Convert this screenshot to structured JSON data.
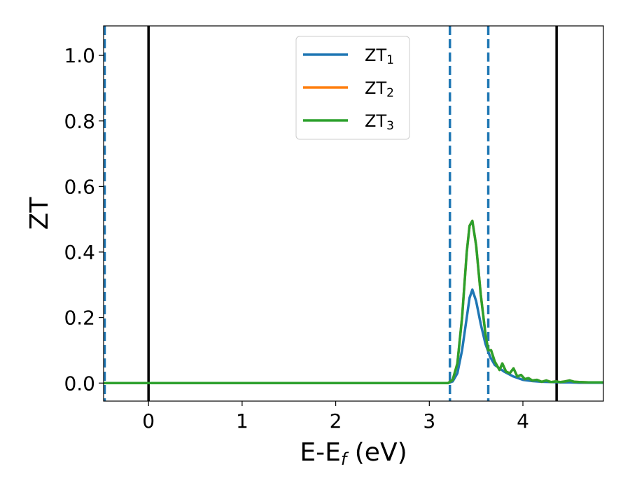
{
  "chart_data": {
    "type": "line",
    "xlabel_main": "E-E",
    "xlabel_sub": "f",
    "xlabel_unit": " (eV)",
    "ylabel": "ZT",
    "xlim": [
      -0.48,
      4.86
    ],
    "ylim": [
      -0.055,
      1.09
    ],
    "xticks": [
      0,
      1,
      2,
      3,
      4
    ],
    "xtick_labels": [
      "0",
      "1",
      "2",
      "3",
      "4"
    ],
    "yticks": [
      0.0,
      0.2,
      0.4,
      0.6,
      0.8,
      1.0
    ],
    "ytick_labels": [
      "0.0",
      "0.2",
      "0.4",
      "0.6",
      "0.8",
      "1.0"
    ],
    "grid": false,
    "legend_position": "top-center",
    "vlines": [
      {
        "x": -0.48,
        "style": "dashed",
        "color": "#1f77b4"
      },
      {
        "x": 0.0,
        "style": "solid",
        "color": "#000000"
      },
      {
        "x": 3.22,
        "style": "dashed",
        "color": "#1f77b4"
      },
      {
        "x": 3.63,
        "style": "dashed",
        "color": "#1f77b4"
      },
      {
        "x": 4.36,
        "style": "solid",
        "color": "#000000"
      }
    ],
    "series": [
      {
        "name": "ZT",
        "subscript": "1",
        "color": "#1f77b4",
        "x": [
          -0.48,
          3.2,
          3.25,
          3.3,
          3.35,
          3.4,
          3.43,
          3.46,
          3.5,
          3.55,
          3.6,
          3.65,
          3.7,
          3.8,
          3.9,
          4.0,
          4.1,
          4.2,
          4.3,
          4.4,
          4.5,
          4.6,
          4.7,
          4.86
        ],
        "y": [
          0.0,
          0.0,
          0.005,
          0.03,
          0.1,
          0.2,
          0.26,
          0.285,
          0.25,
          0.18,
          0.12,
          0.08,
          0.055,
          0.035,
          0.02,
          0.01,
          0.006,
          0.004,
          0.003,
          0.002,
          0.002,
          0.001,
          0.001,
          0.001
        ]
      },
      {
        "name": "ZT",
        "subscript": "2",
        "color": "#ff7f0e",
        "x": [
          -0.48,
          3.2,
          3.25,
          3.3,
          3.35,
          3.4,
          3.43,
          3.46,
          3.5,
          3.55,
          3.6,
          3.63,
          3.66,
          3.7,
          3.75,
          3.78,
          3.82,
          3.86,
          3.9,
          3.94,
          3.98,
          4.02,
          4.06,
          4.1,
          4.15,
          4.2,
          4.25,
          4.3,
          4.35,
          4.4,
          4.45,
          4.5,
          4.55,
          4.6,
          4.7,
          4.8,
          4.86
        ],
        "y": [
          0.0,
          0.0,
          0.01,
          0.06,
          0.2,
          0.4,
          0.48,
          0.495,
          0.42,
          0.27,
          0.15,
          0.1,
          0.1,
          0.065,
          0.04,
          0.06,
          0.035,
          0.03,
          0.045,
          0.02,
          0.025,
          0.012,
          0.015,
          0.008,
          0.01,
          0.004,
          0.008,
          0.003,
          0.005,
          0.003,
          0.005,
          0.008,
          0.004,
          0.003,
          0.002,
          0.002,
          0.002
        ]
      },
      {
        "name": "ZT",
        "subscript": "3",
        "color": "#2ca02c",
        "x": [
          -0.48,
          3.2,
          3.25,
          3.3,
          3.35,
          3.4,
          3.43,
          3.46,
          3.5,
          3.55,
          3.6,
          3.63,
          3.66,
          3.7,
          3.75,
          3.78,
          3.82,
          3.86,
          3.9,
          3.94,
          3.98,
          4.02,
          4.06,
          4.1,
          4.15,
          4.2,
          4.25,
          4.3,
          4.35,
          4.4,
          4.45,
          4.5,
          4.55,
          4.6,
          4.7,
          4.8,
          4.86
        ],
        "y": [
          0.0,
          0.0,
          0.01,
          0.06,
          0.2,
          0.4,
          0.48,
          0.495,
          0.42,
          0.27,
          0.15,
          0.1,
          0.1,
          0.065,
          0.04,
          0.06,
          0.035,
          0.03,
          0.045,
          0.02,
          0.025,
          0.012,
          0.015,
          0.008,
          0.01,
          0.004,
          0.008,
          0.003,
          0.005,
          0.003,
          0.005,
          0.008,
          0.004,
          0.003,
          0.002,
          0.002,
          0.002
        ]
      }
    ]
  }
}
